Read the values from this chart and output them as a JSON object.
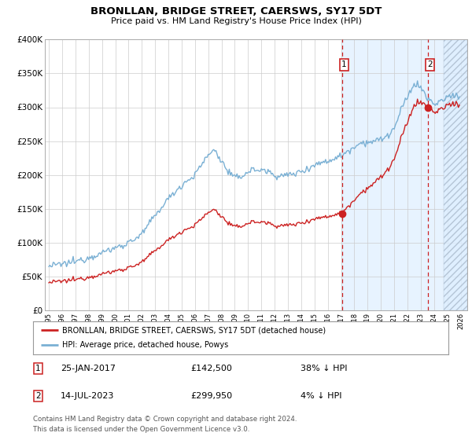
{
  "title": "BRONLLAN, BRIDGE STREET, CAERSWS, SY17 5DT",
  "subtitle": "Price paid vs. HM Land Registry's House Price Index (HPI)",
  "legend_property": "BRONLLAN, BRIDGE STREET, CAERSWS, SY17 5DT (detached house)",
  "legend_hpi": "HPI: Average price, detached house, Powys",
  "t1_date_str": "25-JAN-2017",
  "t1_price": 142500,
  "t1_pct": "38% ↓ HPI",
  "t2_date_str": "14-JUL-2023",
  "t2_price": 299950,
  "t2_pct": "4% ↓ HPI",
  "footnote1": "Contains HM Land Registry data © Crown copyright and database right 2024.",
  "footnote2": "This data is licensed under the Open Government Licence v3.0.",
  "hpi_color": "#7ab0d4",
  "property_color": "#cc2222",
  "dashed_color": "#cc2222",
  "ylim": [
    0,
    400000
  ],
  "yticks": [
    0,
    50000,
    100000,
    150000,
    200000,
    250000,
    300000,
    350000,
    400000
  ],
  "grid_color": "#cccccc",
  "shaded_blue_start": 2017.0,
  "shaded_blue_end": 2026.5,
  "hatch_start": 2024.75,
  "hatch_end": 2026.5,
  "xmin": 1994.7,
  "xmax": 2026.5,
  "t1_x": 2017.08,
  "t2_x": 2023.54,
  "hpi_anchors_x": [
    1995.0,
    1996.0,
    1997.0,
    1998.0,
    1999.0,
    2000.0,
    2001.0,
    2002.0,
    2003.0,
    2004.0,
    2005.0,
    2006.0,
    2007.0,
    2007.5,
    2008.0,
    2008.5,
    2009.0,
    2009.5,
    2010.0,
    2010.5,
    2011.0,
    2011.5,
    2012.0,
    2012.5,
    2013.0,
    2013.5,
    2014.0,
    2014.5,
    2015.0,
    2015.5,
    2016.0,
    2016.5,
    2017.0,
    2017.5,
    2018.0,
    2018.5,
    2019.0,
    2019.5,
    2020.0,
    2020.5,
    2021.0,
    2021.5,
    2022.0,
    2022.5,
    2023.0,
    2023.5,
    2024.0,
    2024.5,
    2025.0,
    2025.5
  ],
  "hpi_anchors_y": [
    65000,
    68000,
    72000,
    78000,
    85000,
    92000,
    100000,
    112000,
    140000,
    165000,
    185000,
    200000,
    230000,
    237000,
    220000,
    205000,
    195000,
    198000,
    205000,
    208000,
    207000,
    205000,
    200000,
    198000,
    200000,
    202000,
    205000,
    210000,
    215000,
    218000,
    220000,
    225000,
    228000,
    235000,
    242000,
    248000,
    248000,
    250000,
    252000,
    258000,
    268000,
    295000,
    315000,
    335000,
    330000,
    312000,
    305000,
    308000,
    315000,
    318000
  ]
}
